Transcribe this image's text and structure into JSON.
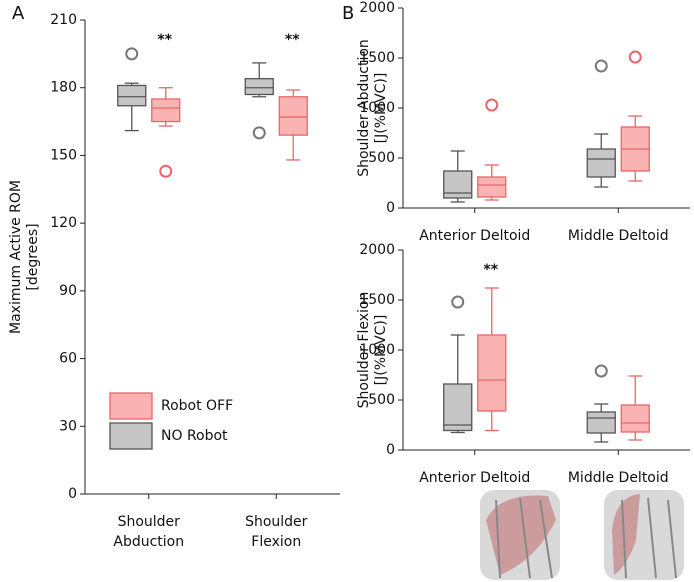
{
  "panel_labels": [
    "A",
    "B"
  ],
  "chart_data": [
    {
      "type": "box",
      "ylabel": [
        "Maximum Active ROM",
        "[degrees]"
      ],
      "categories": [
        [
          "Shoulder",
          "Abduction"
        ],
        [
          "Shoulder",
          "Flexion"
        ]
      ],
      "ylim": [
        0,
        210
      ],
      "yticks": [
        0,
        30,
        60,
        90,
        120,
        150,
        180,
        210
      ],
      "annotations": [
        "**",
        "**"
      ],
      "legend": "lower left",
      "series": [
        {
          "name": "NO Robot",
          "color": "#c6c6c6",
          "edgecolor": "#555555",
          "outlier_color": "#777777",
          "values": [
            {
              "low": 161,
              "q1": 172,
              "median": 176,
              "q3": 181,
              "high": 182,
              "outliers": [
                195
              ]
            },
            {
              "low": 176,
              "q1": 177,
              "median": 180,
              "q3": 184,
              "high": 191,
              "outliers": [
                160
              ]
            }
          ]
        },
        {
          "name": "Robot OFF",
          "color": "#f9b3b3",
          "edgecolor": "#e8676b",
          "outlier_color": "#e8676b",
          "values": [
            {
              "low": 163,
              "q1": 165,
              "median": 171,
              "q3": 175,
              "high": 180,
              "outliers": [
                143
              ]
            },
            {
              "low": 148,
              "q1": 159,
              "median": 167,
              "q3": 176,
              "high": 179,
              "outliers": []
            }
          ]
        }
      ]
    },
    {
      "type": "box",
      "ylabel": [
        "Shoulder Abduction",
        "[J(%MVC)]"
      ],
      "categories": [
        [
          "Anterior Deltoid"
        ],
        [
          "Middle Deltoid"
        ]
      ],
      "ylim": [
        0,
        2000
      ],
      "yticks": [
        0,
        500,
        1000,
        1500,
        2000
      ],
      "series": [
        {
          "name": "NO Robot",
          "color": "#c6c6c6",
          "edgecolor": "#555555",
          "outlier_color": "#777777",
          "values": [
            {
              "low": 60,
              "q1": 100,
              "median": 150,
              "q3": 370,
              "high": 570,
              "outliers": []
            },
            {
              "low": 210,
              "q1": 310,
              "median": 490,
              "q3": 590,
              "high": 740,
              "outliers": [
                1420
              ]
            }
          ]
        },
        {
          "name": "Robot OFF",
          "color": "#f9b3b3",
          "edgecolor": "#e8676b",
          "outlier_color": "#e8676b",
          "values": [
            {
              "low": 80,
              "q1": 110,
              "median": 230,
              "q3": 310,
              "high": 430,
              "outliers": [
                1030
              ]
            },
            {
              "low": 270,
              "q1": 370,
              "median": 590,
              "q3": 810,
              "high": 920,
              "outliers": [
                1510
              ]
            }
          ]
        }
      ]
    },
    {
      "type": "box",
      "ylabel": [
        "Shoulder Flexion",
        "[J(%MVC)]"
      ],
      "categories": [
        [
          "Anterior Deltoid"
        ],
        [
          "Middle Deltoid"
        ]
      ],
      "ylim": [
        0,
        2000
      ],
      "yticks": [
        0,
        500,
        1000,
        1500,
        2000
      ],
      "annotations": [
        "**",
        null
      ],
      "series": [
        {
          "name": "NO Robot",
          "color": "#c6c6c6",
          "edgecolor": "#555555",
          "outlier_color": "#777777",
          "values": [
            {
              "low": 175,
              "q1": 195,
              "median": 250,
              "q3": 660,
              "high": 1150,
              "outliers": [
                1480
              ]
            },
            {
              "low": 80,
              "q1": 170,
              "median": 320,
              "q3": 380,
              "high": 460,
              "outliers": [
                790
              ]
            }
          ]
        },
        {
          "name": "Robot OFF",
          "color": "#f9b3b3",
          "edgecolor": "#e8676b",
          "outlier_color": "#e8676b",
          "values": [
            {
              "low": 195,
              "q1": 390,
              "median": 700,
              "q3": 1150,
              "high": 1620,
              "outliers": []
            },
            {
              "low": 100,
              "q1": 180,
              "median": 270,
              "q3": 450,
              "high": 740,
              "outliers": []
            }
          ]
        }
      ]
    }
  ]
}
